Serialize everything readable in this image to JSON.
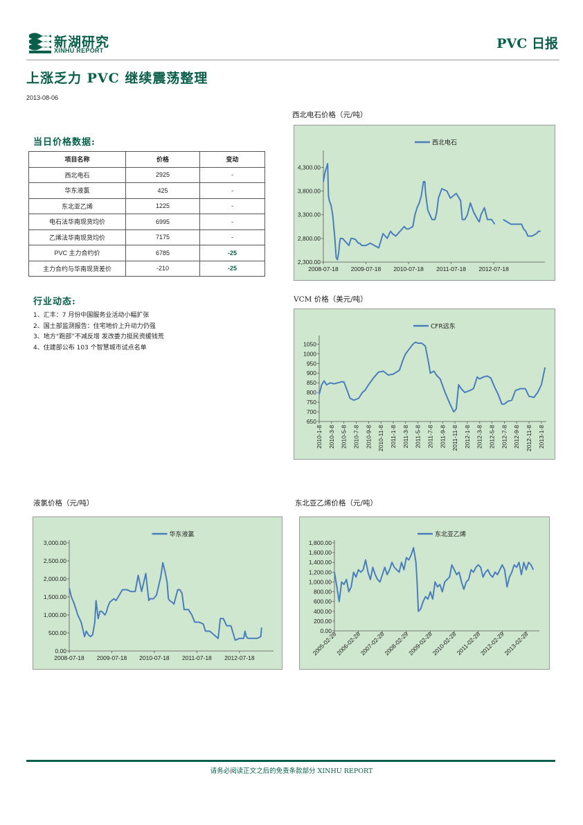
{
  "header": {
    "logo_cn": "新湖研究",
    "logo_en": "XINHU REPORT",
    "report_type": "PVC 日报"
  },
  "title": "上涨乏力 PVC 继续震荡整理",
  "date": "2013-08-06",
  "price_section": {
    "title": "当日价格数据:",
    "headers": [
      "项目名称",
      "价格",
      "变动"
    ],
    "rows": [
      [
        "西北电石",
        "2925",
        "-"
      ],
      [
        "华东液氯",
        "425",
        "-"
      ],
      [
        "东北亚乙烯",
        "1225",
        "-"
      ],
      [
        "电石法华南现货均价",
        "6995",
        "-"
      ],
      [
        "乙烯法华南现货均价",
        "7175",
        "-"
      ],
      [
        "PVC 主力合约价",
        "6785",
        "-25"
      ],
      [
        "主力合约与华南现货差价",
        "-210",
        "-25"
      ]
    ]
  },
  "news_section": {
    "title": "行业动态:",
    "items": [
      "1、汇丰：7 月份中国服务业活动小幅扩张",
      "2、国土部监测报告：住宅地价上升动力仍强",
      "3、地方“跑部”不减反增 发改委力挺民资缓钱荒",
      "4、住建部公布 103 个智慧城市试点名单"
    ]
  },
  "footer": "请务必阅读正文之后的免责条款部分 XINHU REPORT",
  "colors": {
    "brand": "#0a5f4a",
    "series": "#4a7ebb",
    "chart_bg": "#cfe7cf"
  },
  "chart_data": [
    {
      "id": "carbide",
      "type": "line",
      "title": "西北电石价格（元/吨）",
      "series_name": "西北电石",
      "ylim": [
        2300,
        4600
      ],
      "yticks": [
        2300,
        2800,
        3300,
        3800,
        4300
      ],
      "ytick_labels": [
        "2,300.00",
        "2,800.00",
        "3,300.00",
        "3,800.00",
        "4,300.00"
      ],
      "xlim": [
        0,
        5.2
      ],
      "xticks": [
        0,
        1,
        2,
        3,
        4
      ],
      "xtick_labels": [
        "2008-07-18",
        "2009-07-18",
        "2010-07-18",
        "2011-07-18",
        "2012-07-18"
      ],
      "xrotate": false,
      "x": [
        0.0,
        0.04,
        0.1,
        0.12,
        0.14,
        0.18,
        0.22,
        0.27,
        0.3,
        0.33,
        0.36,
        0.38,
        0.4,
        0.45,
        0.6,
        0.65,
        0.68,
        0.75,
        0.82,
        0.85,
        0.9,
        1.0,
        1.1,
        1.2,
        1.3,
        1.4,
        1.5,
        1.55,
        1.58,
        1.62,
        1.7,
        1.8,
        1.9,
        1.95,
        2.0,
        2.1,
        2.15,
        2.2,
        2.25,
        2.3,
        2.35,
        2.38,
        2.4,
        2.45,
        2.5,
        2.55,
        2.62,
        2.66,
        2.7,
        2.78,
        2.9,
        2.98,
        3.05,
        3.12,
        3.22,
        3.26,
        3.32,
        3.38,
        3.45,
        3.53,
        3.56,
        3.62,
        3.66,
        3.7,
        3.78,
        3.85,
        3.95,
        4.02
      ],
      "y": [
        4000,
        4200,
        4380,
        3700,
        3600,
        3500,
        3300,
        2800,
        2400,
        2350,
        2500,
        2700,
        2800,
        2800,
        2650,
        2800,
        2800,
        2780,
        2700,
        2700,
        2650,
        2650,
        2700,
        2650,
        2600,
        2900,
        2800,
        2900,
        2950,
        2900,
        2850,
        2950,
        3050,
        3000,
        3000,
        3050,
        3300,
        3450,
        3550,
        3700,
        4000,
        4000,
        3750,
        3400,
        3300,
        3200,
        3200,
        3350,
        3650,
        3850,
        3800,
        3650,
        3700,
        3750,
        3600,
        3200,
        3200,
        3300,
        3550,
        3350,
        3300,
        3200,
        3150,
        3300,
        3450,
        3200,
        3200,
        3100
      ],
      "x2": [
        4.22,
        4.4,
        4.5,
        4.6,
        4.65,
        4.7,
        4.75,
        4.8,
        4.9,
        5.0,
        5.05,
        5.1
      ],
      "y2": [
        3200,
        3100,
        3100,
        3100,
        3100,
        3000,
        2950,
        2850,
        2850,
        2900,
        2950,
        2950
      ]
    },
    {
      "id": "vcm",
      "type": "line",
      "title": "VCM 价格（美元/吨）",
      "series_name": "CFR远东",
      "ylim": [
        650,
        1080
      ],
      "yticks": [
        650,
        700,
        750,
        800,
        850,
        900,
        950,
        1000,
        1050
      ],
      "ytick_labels": [
        "650",
        "700",
        "750",
        "800",
        "850",
        "900",
        "950",
        "1000",
        "1050"
      ],
      "xlim": [
        0,
        18.4
      ],
      "xticks": [
        0,
        1,
        2,
        3,
        4,
        5,
        6,
        7,
        8,
        9,
        10,
        11,
        12,
        13,
        14,
        15,
        16,
        17,
        18
      ],
      "xtick_labels": [
        "2010-1-8",
        "2010-3-8",
        "2010-5-8",
        "2010-7-8",
        "2010-9-8",
        "2010-11-8",
        "2011-1-8",
        "2011-3-8",
        "2011-5-8",
        "2011-7-8",
        "2011-9-8",
        "2011-11-8",
        "2012-1-8",
        "2012-3-8",
        "2012-5-8",
        "2012-7-8",
        "2012-9-8",
        "2012-11-8",
        "2013-1-8"
      ],
      "xrotate": true,
      "x": [
        0.0,
        0.2,
        0.4,
        0.6,
        0.9,
        1.2,
        1.5,
        1.8,
        2.0,
        2.5,
        2.8,
        3.2,
        3.5,
        3.7,
        4.0,
        4.4,
        4.8,
        5.2,
        5.6,
        6.0,
        6.5,
        6.8,
        7.0,
        7.3,
        7.6,
        7.8,
        8.0,
        8.3,
        8.6,
        8.9,
        9.0,
        9.3,
        9.5,
        9.8,
        10.2,
        10.6,
        10.9,
        11.1,
        11.3,
        11.5,
        11.8,
        12.2,
        12.5,
        12.8,
        13.0,
        13.3,
        13.6,
        13.9,
        14.2,
        14.5,
        14.8,
        15.0,
        15.3,
        15.6,
        15.9,
        16.3,
        16.7,
        17.0,
        17.4,
        17.7,
        18.0,
        18.3
      ],
      "y": [
        790,
        840,
        860,
        840,
        850,
        845,
        850,
        855,
        855,
        770,
        760,
        770,
        800,
        810,
        840,
        875,
        905,
        910,
        890,
        895,
        915,
        970,
        1000,
        1025,
        1050,
        1060,
        1055,
        1055,
        1040,
        940,
        900,
        910,
        890,
        870,
        800,
        740,
        700,
        715,
        840,
        820,
        800,
        810,
        820,
        880,
        870,
        880,
        885,
        875,
        830,
        790,
        740,
        740,
        755,
        760,
        810,
        820,
        820,
        780,
        775,
        800,
        840,
        930
      ]
    },
    {
      "id": "chlorine",
      "type": "line",
      "title": "液氯价格（元/吨）",
      "series_name": "华东液氯",
      "ylim": [
        0,
        3000
      ],
      "yticks": [
        0,
        500,
        1000,
        1500,
        2000,
        2500,
        3000
      ],
      "ytick_labels": [
        "0.00",
        "500.00",
        "1,000.00",
        "1,500.00",
        "2,000.00",
        "2,500.00",
        "3,000.00"
      ],
      "xlim": [
        0,
        4.8
      ],
      "xticks": [
        0,
        1,
        2,
        3,
        4
      ],
      "xtick_labels": [
        "2008-07-18",
        "2009-07-18",
        "2010-07-18",
        "2011-07-18",
        "2012-07-18"
      ],
      "xrotate": false,
      "x": [
        0.0,
        0.05,
        0.12,
        0.2,
        0.28,
        0.32,
        0.36,
        0.4,
        0.45,
        0.5,
        0.55,
        0.6,
        0.63,
        0.68,
        0.72,
        0.76,
        0.8,
        0.84,
        0.88,
        0.9,
        0.95,
        1.05,
        1.1,
        1.15,
        1.25,
        1.35,
        1.45,
        1.55,
        1.62,
        1.7,
        1.8,
        1.85,
        1.87,
        1.9,
        1.95,
        1.98,
        2.05,
        2.15,
        2.2,
        2.25,
        2.3,
        2.33,
        2.36,
        2.42,
        2.46,
        2.55,
        2.6,
        2.65,
        2.7,
        2.75,
        2.8,
        2.88,
        2.95,
        3.05,
        3.15,
        3.2,
        3.3,
        3.4,
        3.45,
        3.5,
        3.55,
        3.62,
        3.7,
        3.8,
        3.9,
        4.0,
        4.1,
        4.13,
        4.16,
        4.2,
        4.3,
        4.42,
        4.5,
        4.52
      ],
      "y": [
        1750,
        1500,
        1300,
        1000,
        800,
        600,
        400,
        550,
        450,
        400,
        450,
        800,
        1400,
        900,
        1100,
        1100,
        1050,
        1000,
        1100,
        1200,
        1350,
        1450,
        1400,
        1500,
        1700,
        1700,
        1650,
        1650,
        2100,
        1650,
        2150,
        1600,
        1400,
        1450,
        1450,
        1450,
        1550,
        2050,
        2450,
        2200,
        1900,
        1450,
        1400,
        1350,
        1300,
        1700,
        1700,
        1600,
        1150,
        1150,
        1150,
        1000,
        800,
        800,
        750,
        550,
        550,
        450,
        400,
        350,
        900,
        900,
        700,
        700,
        300,
        350,
        350,
        550,
        400,
        350,
        350,
        350,
        400,
        650
      ]
    },
    {
      "id": "ethylene",
      "type": "line",
      "title": "东北亚乙烯价格（元/吨）",
      "series_name": "东北亚乙烯",
      "ylim": [
        0,
        1800
      ],
      "yticks": [
        0,
        200,
        400,
        600,
        800,
        1000,
        1200,
        1400,
        1600,
        1800
      ],
      "ytick_labels": [
        "0.00",
        "200.00",
        "400.00",
        "600.00",
        "800.00",
        "1,000.00",
        "1,200.00",
        "1,400.00",
        "1,600.00",
        "1,800.00"
      ],
      "xlim": [
        0,
        8.55
      ],
      "xticks": [
        0,
        1,
        2,
        3,
        4,
        5,
        6,
        7,
        8
      ],
      "xtick_labels": [
        "2005-02-28",
        "2006-02-28",
        "2007-02-28",
        "2008-02-29",
        "2009-02-28",
        "2010-02-28",
        "2011-02-28",
        "2012-02-29",
        "2013-02-28"
      ],
      "xrotate": true,
      "x": [
        0.0,
        0.1,
        0.2,
        0.3,
        0.4,
        0.5,
        0.6,
        0.7,
        0.8,
        0.9,
        1.0,
        1.1,
        1.2,
        1.3,
        1.4,
        1.5,
        1.6,
        1.7,
        1.8,
        1.9,
        2.0,
        2.1,
        2.2,
        2.3,
        2.4,
        2.5,
        2.6,
        2.7,
        2.8,
        2.9,
        3.0,
        3.1,
        3.2,
        3.3,
        3.35,
        3.4,
        3.45,
        3.5,
        3.6,
        3.7,
        3.8,
        3.9,
        4.0,
        4.1,
        4.2,
        4.3,
        4.4,
        4.5,
        4.6,
        4.7,
        4.8,
        4.9,
        5.0,
        5.1,
        5.2,
        5.3,
        5.4,
        5.5,
        5.6,
        5.7,
        5.8,
        5.9,
        6.0,
        6.1,
        6.2,
        6.3,
        6.4,
        6.5,
        6.6,
        6.7,
        6.8,
        6.9,
        7.0,
        7.1,
        7.2,
        7.3,
        7.4,
        7.5,
        7.6,
        7.7,
        7.8,
        7.9,
        8.0,
        8.1,
        8.2,
        8.3
      ],
      "y": [
        1200,
        900,
        600,
        1000,
        950,
        1050,
        800,
        900,
        1200,
        1100,
        1250,
        1200,
        1250,
        1450,
        1200,
        1050,
        1300,
        1150,
        1050,
        1000,
        1150,
        1300,
        1150,
        1250,
        1400,
        1300,
        1250,
        1200,
        1400,
        1250,
        1500,
        1450,
        1550,
        1700,
        1550,
        1400,
        1000,
        400,
        450,
        600,
        700,
        650,
        800,
        650,
        1000,
        900,
        950,
        800,
        1000,
        1050,
        1100,
        1350,
        1250,
        1150,
        1200,
        1000,
        850,
        1000,
        1050,
        1250,
        1200,
        1300,
        1350,
        1300,
        1100,
        1200,
        1250,
        1150,
        1100,
        1200,
        1150,
        1250,
        1350,
        1250,
        900,
        1100,
        1200,
        1350,
        1300,
        1400,
        1150,
        1400,
        1250,
        1400,
        1350,
        1250
      ]
    }
  ]
}
